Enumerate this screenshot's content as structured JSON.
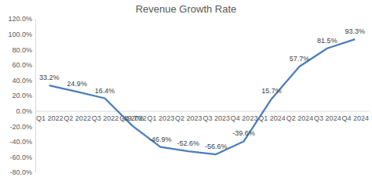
{
  "chart_data": {
    "type": "line",
    "title": "Revenue Growth Rate",
    "categories": [
      "Q1 2022",
      "Q2 2022",
      "Q3 2022",
      "Q4 2022",
      "Q1 2023",
      "Q2 2023",
      "Q3 2023",
      "Q4 2023",
      "Q1 2024",
      "Q2 2024",
      "Q3 2024",
      "Q4 2024"
    ],
    "values": [
      33.2,
      24.9,
      16.4,
      -19.7,
      -46.9,
      -52.6,
      -56.6,
      -39.6,
      15.7,
      57.7,
      81.5,
      93.3
    ],
    "value_labels": [
      "33.2%",
      "24.9%",
      "16.4%",
      "-19.7%",
      "-46.9%",
      "-52.6%",
      "-56.6%",
      "-39.6%",
      "15.7%",
      "57.7%",
      "81.5%",
      "93.3%"
    ],
    "color": "#4a7ebb",
    "ylim": [
      -80,
      120
    ],
    "yticks": [
      {
        "value": -80,
        "label": "-80.0%"
      },
      {
        "value": -60,
        "label": "-60.0%"
      },
      {
        "value": -40,
        "label": "-40.0%"
      },
      {
        "value": -20,
        "label": "-20.0%"
      },
      {
        "value": 0,
        "label": "0.0%"
      },
      {
        "value": 20,
        "label": "20.0%"
      },
      {
        "value": 40,
        "label": "40.0%"
      },
      {
        "value": 60,
        "label": "60.0%"
      },
      {
        "value": 80,
        "label": "80.0%"
      },
      {
        "value": 100,
        "label": "100.0%"
      },
      {
        "value": 120,
        "label": "120.0%"
      }
    ],
    "grid": false,
    "data_labels": true
  }
}
